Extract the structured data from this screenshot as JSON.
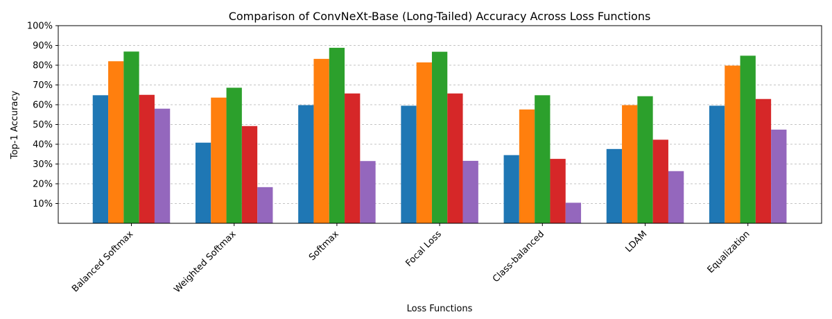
{
  "chart_data": {
    "type": "bar",
    "title": "Comparison of ConvNeXt-Base (Long-Tailed) Accuracy Across Loss Functions",
    "xlabel": "Loss Functions",
    "ylabel": "Top-1 Accuracy",
    "ylim": [
      0,
      100
    ],
    "yticks": [
      "10%",
      "20%",
      "30%",
      "40%",
      "50%",
      "60%",
      "70%",
      "80%",
      "90%",
      "100%"
    ],
    "grid": "horizontal dashed",
    "categories": [
      "Balanced Softmax",
      "Weighted Softmax",
      "Softmax",
      "Focal Loss",
      "Class-balanced",
      "LDAM",
      "Equalization"
    ],
    "series": [
      {
        "color": "#1f77b4",
        "values": [
          64.8,
          40.8,
          59.8,
          59.5,
          34.5,
          37.6,
          59.5
        ]
      },
      {
        "color": "#ff7f0e",
        "values": [
          82.0,
          63.6,
          83.2,
          81.4,
          57.6,
          59.8,
          79.8
        ]
      },
      {
        "color": "#2ca02c",
        "values": [
          86.9,
          68.6,
          88.8,
          86.8,
          64.8,
          64.3,
          84.8
        ]
      },
      {
        "color": "#d62728",
        "values": [
          65.0,
          49.2,
          65.7,
          65.7,
          32.6,
          42.3,
          62.9
        ]
      },
      {
        "color": "#9467bd",
        "values": [
          58.0,
          18.3,
          31.5,
          31.6,
          10.4,
          26.4,
          47.4
        ]
      }
    ]
  }
}
